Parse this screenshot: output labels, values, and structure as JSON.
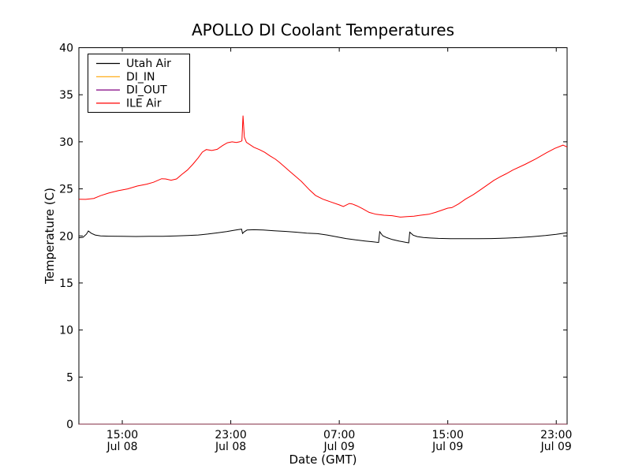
{
  "chart_data": {
    "type": "line",
    "title": "APOLLO DI Coolant Temperatures",
    "xlabel": "Date (GMT)",
    "ylabel": "Temperature (C)",
    "ylim": [
      0,
      40
    ],
    "xlim_hours": [
      11.8,
      47.8
    ],
    "x_unit": "hours since Jul 08 00:00 GMT",
    "grid": false,
    "legend_position": "upper left",
    "axis_color": "#000000",
    "background": "#ffffff",
    "yticks": [
      0,
      5,
      10,
      15,
      20,
      25,
      30,
      35,
      40
    ],
    "xticks": [
      {
        "t": 15,
        "time": "15:00",
        "date": "Jul 08"
      },
      {
        "t": 23,
        "time": "23:00",
        "date": "Jul 08"
      },
      {
        "t": 31,
        "time": "07:00",
        "date": "Jul 09"
      },
      {
        "t": 39,
        "time": "15:00",
        "date": "Jul 09"
      },
      {
        "t": 47,
        "time": "23:00",
        "date": "Jul 09"
      }
    ],
    "series": [
      {
        "name": "Utah Air",
        "color": "#000000",
        "opacity": 1,
        "points": [
          [
            11.8,
            19.8
          ],
          [
            12.1,
            19.85
          ],
          [
            12.35,
            20.18
          ],
          [
            12.5,
            20.52
          ],
          [
            12.72,
            20.28
          ],
          [
            13.0,
            20.1
          ],
          [
            13.4,
            20.0
          ],
          [
            14.0,
            19.97
          ],
          [
            15.0,
            19.95
          ],
          [
            16.0,
            19.94
          ],
          [
            17.0,
            19.95
          ],
          [
            18.0,
            19.96
          ],
          [
            19.0,
            20.0
          ],
          [
            19.8,
            20.04
          ],
          [
            20.6,
            20.1
          ],
          [
            21.3,
            20.2
          ],
          [
            22.0,
            20.32
          ],
          [
            22.7,
            20.46
          ],
          [
            23.2,
            20.58
          ],
          [
            23.6,
            20.68
          ],
          [
            23.8,
            20.72
          ],
          [
            23.87,
            20.26
          ],
          [
            24.0,
            20.45
          ],
          [
            24.2,
            20.62
          ],
          [
            24.7,
            20.66
          ],
          [
            25.4,
            20.62
          ],
          [
            26.2,
            20.55
          ],
          [
            27.0,
            20.48
          ],
          [
            27.8,
            20.4
          ],
          [
            28.6,
            20.3
          ],
          [
            29.4,
            20.24
          ],
          [
            30.1,
            20.1
          ],
          [
            30.8,
            19.9
          ],
          [
            31.5,
            19.72
          ],
          [
            32.2,
            19.58
          ],
          [
            32.9,
            19.46
          ],
          [
            33.5,
            19.37
          ],
          [
            33.9,
            19.3
          ],
          [
            33.98,
            20.45
          ],
          [
            34.2,
            20.02
          ],
          [
            34.5,
            19.82
          ],
          [
            34.9,
            19.62
          ],
          [
            35.4,
            19.46
          ],
          [
            35.9,
            19.32
          ],
          [
            36.12,
            19.27
          ],
          [
            36.2,
            20.4
          ],
          [
            36.45,
            20.08
          ],
          [
            36.75,
            19.93
          ],
          [
            37.2,
            19.83
          ],
          [
            37.7,
            19.78
          ],
          [
            38.3,
            19.74
          ],
          [
            39.2,
            19.71
          ],
          [
            40.2,
            19.7
          ],
          [
            41.2,
            19.7
          ],
          [
            42.2,
            19.72
          ],
          [
            43.2,
            19.76
          ],
          [
            44.2,
            19.82
          ],
          [
            45.2,
            19.92
          ],
          [
            46.2,
            20.04
          ],
          [
            47.0,
            20.16
          ],
          [
            47.5,
            20.27
          ],
          [
            47.8,
            20.34
          ]
        ]
      },
      {
        "name": "DI_IN",
        "color": "#ffa500",
        "opacity": 0.5,
        "note": "flat at 0, lies along bottom axis",
        "points": [
          [
            11.8,
            0
          ],
          [
            47.8,
            0
          ]
        ]
      },
      {
        "name": "DI_OUT",
        "color": "#800080",
        "opacity": 0.5,
        "note": "flat at 0, lies along bottom axis",
        "points": [
          [
            11.8,
            0
          ],
          [
            47.8,
            0
          ]
        ]
      },
      {
        "name": "ILE Air",
        "color": "#ff0000",
        "opacity": 1,
        "points": [
          [
            11.8,
            23.9
          ],
          [
            12.3,
            23.88
          ],
          [
            12.9,
            23.98
          ],
          [
            13.4,
            24.28
          ],
          [
            14.0,
            24.55
          ],
          [
            14.7,
            24.8
          ],
          [
            15.4,
            25.0
          ],
          [
            16.1,
            25.3
          ],
          [
            16.8,
            25.5
          ],
          [
            17.3,
            25.7
          ],
          [
            17.9,
            26.08
          ],
          [
            18.2,
            26.05
          ],
          [
            18.6,
            25.92
          ],
          [
            19.0,
            26.05
          ],
          [
            19.4,
            26.55
          ],
          [
            19.8,
            27.0
          ],
          [
            20.2,
            27.6
          ],
          [
            20.6,
            28.3
          ],
          [
            20.9,
            28.9
          ],
          [
            21.2,
            29.18
          ],
          [
            21.6,
            29.08
          ],
          [
            22.0,
            29.2
          ],
          [
            22.4,
            29.6
          ],
          [
            22.75,
            29.9
          ],
          [
            23.1,
            30.0
          ],
          [
            23.4,
            29.93
          ],
          [
            23.65,
            30.0
          ],
          [
            23.82,
            30.1
          ],
          [
            23.9,
            32.78
          ],
          [
            24.0,
            30.5
          ],
          [
            24.15,
            29.95
          ],
          [
            24.7,
            29.42
          ],
          [
            25.1,
            29.18
          ],
          [
            25.5,
            28.88
          ],
          [
            25.9,
            28.5
          ],
          [
            26.3,
            28.15
          ],
          [
            26.6,
            27.8
          ],
          [
            27.0,
            27.3
          ],
          [
            27.4,
            26.8
          ],
          [
            27.8,
            26.3
          ],
          [
            28.2,
            25.8
          ],
          [
            28.8,
            24.9
          ],
          [
            29.25,
            24.3
          ],
          [
            29.8,
            23.9
          ],
          [
            30.4,
            23.6
          ],
          [
            31.0,
            23.3
          ],
          [
            31.3,
            23.12
          ],
          [
            31.75,
            23.45
          ],
          [
            31.95,
            23.4
          ],
          [
            32.3,
            23.2
          ],
          [
            32.7,
            22.9
          ],
          [
            33.2,
            22.5
          ],
          [
            33.7,
            22.3
          ],
          [
            34.3,
            22.2
          ],
          [
            34.9,
            22.15
          ],
          [
            35.5,
            22.0
          ],
          [
            36.0,
            22.05
          ],
          [
            36.5,
            22.1
          ],
          [
            37.0,
            22.2
          ],
          [
            37.6,
            22.3
          ],
          [
            38.1,
            22.5
          ],
          [
            38.5,
            22.7
          ],
          [
            39.0,
            22.95
          ],
          [
            39.3,
            23.0
          ],
          [
            39.8,
            23.4
          ],
          [
            40.3,
            23.9
          ],
          [
            40.9,
            24.4
          ],
          [
            41.4,
            24.9
          ],
          [
            41.9,
            25.4
          ],
          [
            42.4,
            25.9
          ],
          [
            42.9,
            26.3
          ],
          [
            43.3,
            26.6
          ],
          [
            43.8,
            27.0
          ],
          [
            44.7,
            27.6
          ],
          [
            45.5,
            28.2
          ],
          [
            46.3,
            28.85
          ],
          [
            46.9,
            29.3
          ],
          [
            47.5,
            29.65
          ],
          [
            47.8,
            29.45
          ]
        ]
      }
    ],
    "legend": [
      "Utah Air",
      "DI_IN",
      "DI_OUT",
      "ILE Air"
    ]
  }
}
